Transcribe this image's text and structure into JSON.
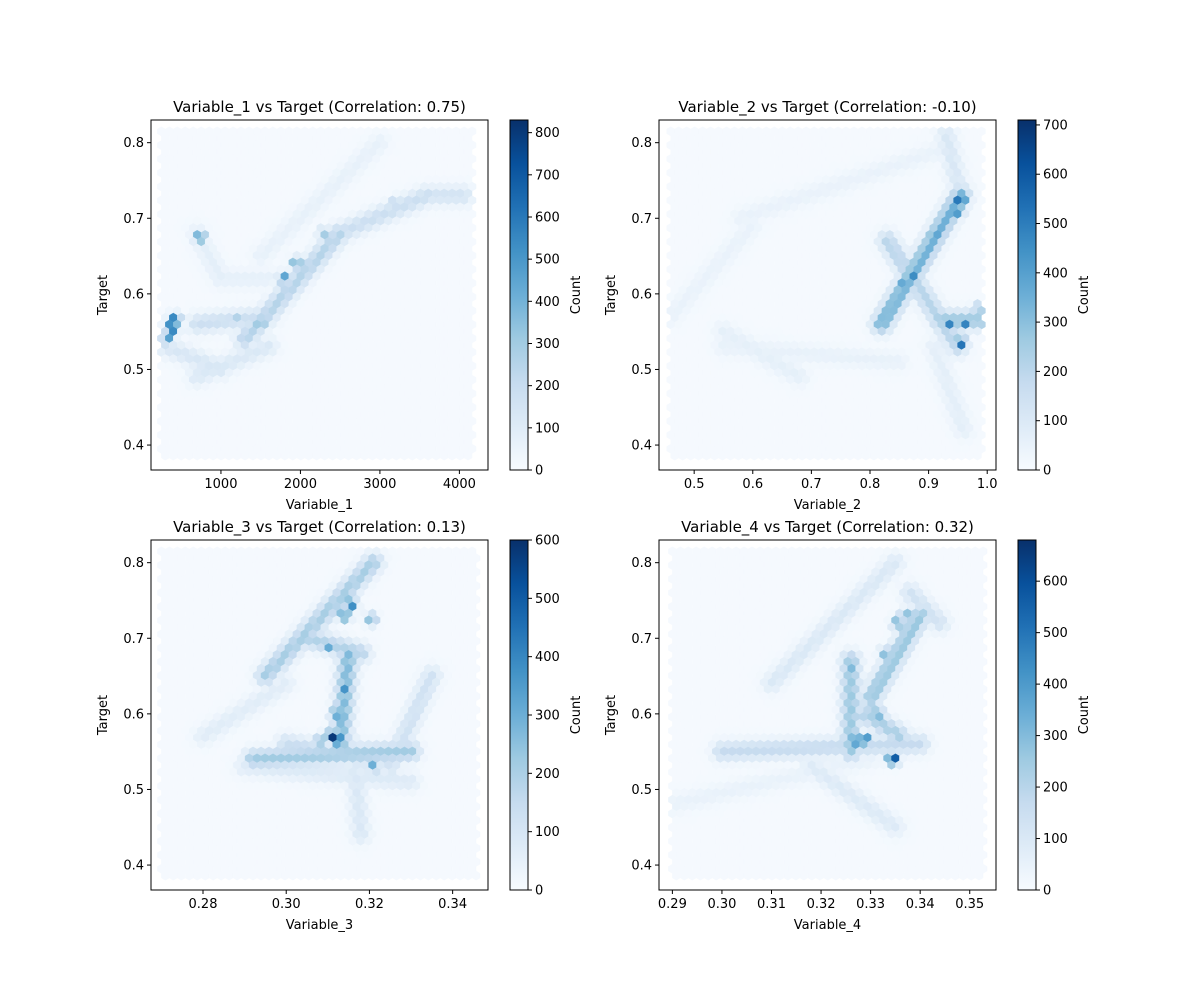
{
  "figure": {
    "colormap": "Blues",
    "background": "#ffffff"
  },
  "chart_data": [
    {
      "type": "heatmap",
      "subtype": "hexbin",
      "title": "Variable_1 vs Target (Correlation: 0.75)",
      "xlabel": "Variable_1",
      "ylabel": "Target",
      "xlim": [
        120,
        4360
      ],
      "ylim": [
        0.367,
        0.83
      ],
      "xticks": [
        1000,
        2000,
        3000,
        4000
      ],
      "yticks": [
        0.4,
        0.5,
        0.6,
        0.7,
        0.8
      ],
      "colorbar": {
        "label": "Count",
        "min": 0,
        "max": 830,
        "ticks": [
          0,
          100,
          200,
          300,
          400,
          500,
          600,
          700,
          800
        ]
      },
      "background_extent": {
        "x": [
          250,
          4200
        ],
        "y": [
          0.383,
          0.815
        ]
      },
      "hotspots": [
        {
          "x": 380,
          "y": 0.555,
          "count": 820
        },
        {
          "x": 420,
          "y": 0.565,
          "count": 700
        },
        {
          "x": 330,
          "y": 0.54,
          "count": 500
        },
        {
          "x": 740,
          "y": 0.675,
          "count": 550
        },
        {
          "x": 1800,
          "y": 0.62,
          "count": 520
        },
        {
          "x": 1950,
          "y": 0.64,
          "count": 480
        },
        {
          "x": 1500,
          "y": 0.56,
          "count": 430
        },
        {
          "x": 1200,
          "y": 0.565,
          "count": 300
        },
        {
          "x": 2300,
          "y": 0.68,
          "count": 300
        },
        {
          "x": 3200,
          "y": 0.72,
          "count": 260
        }
      ],
      "bands": [
        {
          "from": [
            300,
            0.53
          ],
          "to": [
            1000,
            0.5
          ],
          "count": 120
        },
        {
          "from": [
            700,
            0.56
          ],
          "to": [
            1600,
            0.57
          ],
          "count": 170
        },
        {
          "from": [
            1300,
            0.54
          ],
          "to": [
            2500,
            0.68
          ],
          "count": 240
        },
        {
          "from": [
            2500,
            0.68
          ],
          "to": [
            3600,
            0.73
          ],
          "count": 170
        },
        {
          "from": [
            3600,
            0.73
          ],
          "to": [
            4050,
            0.73
          ],
          "count": 140
        },
        {
          "from": [
            700,
            0.68
          ],
          "to": [
            1000,
            0.62
          ],
          "count": 70
        },
        {
          "from": [
            1500,
            0.65
          ],
          "to": [
            3000,
            0.8
          ],
          "count": 55
        },
        {
          "from": [
            700,
            0.49
          ],
          "to": [
            1600,
            0.53
          ],
          "count": 110
        },
        {
          "from": [
            1000,
            0.62
          ],
          "to": [
            1600,
            0.62
          ],
          "count": 60
        }
      ]
    },
    {
      "type": "heatmap",
      "subtype": "hexbin",
      "title": "Variable_2 vs Target (Correlation: -0.10)",
      "xlabel": "Variable_2",
      "ylabel": "Target",
      "xlim": [
        0.44,
        1.015
      ],
      "ylim": [
        0.367,
        0.83
      ],
      "xticks": [
        0.5,
        0.6,
        0.7,
        0.8,
        0.9,
        1.0
      ],
      "yticks": [
        0.4,
        0.5,
        0.6,
        0.7,
        0.8
      ],
      "colorbar": {
        "label": "Count",
        "min": 0,
        "max": 710,
        "ticks": [
          0,
          100,
          200,
          300,
          400,
          500,
          600,
          700
        ]
      },
      "background_extent": {
        "x": [
          0.46,
          0.995
        ],
        "y": [
          0.383,
          0.815
        ]
      },
      "hotspots": [
        {
          "x": 0.955,
          "y": 0.725,
          "count": 700
        },
        {
          "x": 0.95,
          "y": 0.71,
          "count": 560
        },
        {
          "x": 0.91,
          "y": 0.68,
          "count": 520
        },
        {
          "x": 0.87,
          "y": 0.625,
          "count": 580
        },
        {
          "x": 0.86,
          "y": 0.615,
          "count": 500
        },
        {
          "x": 0.94,
          "y": 0.56,
          "count": 560
        },
        {
          "x": 0.96,
          "y": 0.56,
          "count": 520
        },
        {
          "x": 0.955,
          "y": 0.535,
          "count": 600
        },
        {
          "x": 0.985,
          "y": 0.58,
          "count": 300
        },
        {
          "x": 0.83,
          "y": 0.575,
          "count": 280
        }
      ],
      "bands": [
        {
          "from": [
            0.82,
            0.56
          ],
          "to": [
            0.955,
            0.73
          ],
          "count": 340
        },
        {
          "from": [
            0.955,
            0.73
          ],
          "to": [
            0.93,
            0.81
          ],
          "count": 100
        },
        {
          "from": [
            0.83,
            0.67
          ],
          "to": [
            0.95,
            0.53
          ],
          "count": 200
        },
        {
          "from": [
            0.92,
            0.565
          ],
          "to": [
            0.995,
            0.565
          ],
          "count": 260
        },
        {
          "from": [
            0.58,
            0.7
          ],
          "to": [
            0.92,
            0.79
          ],
          "count": 40
        },
        {
          "from": [
            0.46,
            0.57
          ],
          "to": [
            0.6,
            0.69
          ],
          "count": 40
        },
        {
          "from": [
            0.55,
            0.53
          ],
          "to": [
            0.85,
            0.51
          ],
          "count": 45
        },
        {
          "from": [
            0.55,
            0.55
          ],
          "to": [
            0.68,
            0.49
          ],
          "count": 55
        },
        {
          "from": [
            0.91,
            0.53
          ],
          "to": [
            0.96,
            0.42
          ],
          "count": 60
        }
      ]
    },
    {
      "type": "heatmap",
      "subtype": "hexbin",
      "title": "Variable_3 vs Target (Correlation: 0.13)",
      "xlabel": "Variable_3",
      "ylabel": "Target",
      "xlim": [
        0.2675,
        0.3485
      ],
      "ylim": [
        0.367,
        0.83
      ],
      "xticks": [
        0.28,
        0.3,
        0.32,
        0.34
      ],
      "yticks": [
        0.4,
        0.5,
        0.6,
        0.7,
        0.8
      ],
      "colorbar": {
        "label": "Count",
        "min": 0,
        "max": 600,
        "ticks": [
          0,
          100,
          200,
          300,
          400,
          500,
          600
        ]
      },
      "background_extent": {
        "x": [
          0.27,
          0.346
        ],
        "y": [
          0.383,
          0.815
        ]
      },
      "hotspots": [
        {
          "x": 0.311,
          "y": 0.57,
          "count": 600
        },
        {
          "x": 0.3125,
          "y": 0.565,
          "count": 520
        },
        {
          "x": 0.3155,
          "y": 0.745,
          "count": 480
        },
        {
          "x": 0.314,
          "y": 0.73,
          "count": 420
        },
        {
          "x": 0.314,
          "y": 0.63,
          "count": 400
        },
        {
          "x": 0.312,
          "y": 0.6,
          "count": 380
        },
        {
          "x": 0.31,
          "y": 0.69,
          "count": 350
        },
        {
          "x": 0.321,
          "y": 0.53,
          "count": 320
        },
        {
          "x": 0.3205,
          "y": 0.725,
          "count": 300
        },
        {
          "x": 0.3085,
          "y": 0.565,
          "count": 320
        }
      ],
      "bands": [
        {
          "from": [
            0.295,
            0.65
          ],
          "to": [
            0.321,
            0.8
          ],
          "count": 200
        },
        {
          "from": [
            0.28,
            0.57
          ],
          "to": [
            0.3,
            0.64
          ],
          "count": 60
        },
        {
          "from": [
            0.292,
            0.54
          ],
          "to": [
            0.33,
            0.55
          ],
          "count": 210
        },
        {
          "from": [
            0.3,
            0.56
          ],
          "to": [
            0.32,
            0.54
          ],
          "count": 130
        },
        {
          "from": [
            0.313,
            0.56
          ],
          "to": [
            0.315,
            0.68
          ],
          "count": 260
        },
        {
          "from": [
            0.316,
            0.56
          ],
          "to": [
            0.318,
            0.44
          ],
          "count": 80
        },
        {
          "from": [
            0.325,
            0.53
          ],
          "to": [
            0.335,
            0.65
          ],
          "count": 110
        },
        {
          "from": [
            0.305,
            0.7
          ],
          "to": [
            0.318,
            0.68
          ],
          "count": 180
        },
        {
          "from": [
            0.29,
            0.53
          ],
          "to": [
            0.33,
            0.51
          ],
          "count": 70
        }
      ]
    },
    {
      "type": "heatmap",
      "subtype": "hexbin",
      "title": "Variable_4 vs Target (Correlation: 0.32)",
      "xlabel": "Variable_4",
      "ylabel": "Target",
      "xlim": [
        0.2873,
        0.3553
      ],
      "ylim": [
        0.367,
        0.83
      ],
      "xticks": [
        0.29,
        0.3,
        0.31,
        0.32,
        0.33,
        0.34,
        0.35
      ],
      "yticks": [
        0.4,
        0.5,
        0.6,
        0.7,
        0.8
      ],
      "colorbar": {
        "label": "Count",
        "min": 0,
        "max": 680,
        "ticks": [
          0,
          100,
          200,
          300,
          400,
          500,
          600
        ]
      },
      "background_extent": {
        "x": [
          0.29,
          0.353
        ],
        "y": [
          0.383,
          0.815
        ]
      },
      "hotspots": [
        {
          "x": 0.3345,
          "y": 0.54,
          "count": 680
        },
        {
          "x": 0.327,
          "y": 0.565,
          "count": 580
        },
        {
          "x": 0.329,
          "y": 0.565,
          "count": 520
        },
        {
          "x": 0.3315,
          "y": 0.6,
          "count": 400
        },
        {
          "x": 0.3355,
          "y": 0.72,
          "count": 380
        },
        {
          "x": 0.337,
          "y": 0.73,
          "count": 340
        },
        {
          "x": 0.3305,
          "y": 0.62,
          "count": 330
        },
        {
          "x": 0.333,
          "y": 0.68,
          "count": 320
        },
        {
          "x": 0.326,
          "y": 0.66,
          "count": 300
        },
        {
          "x": 0.3385,
          "y": 0.73,
          "count": 260
        }
      ],
      "bands": [
        {
          "from": [
            0.326,
            0.55
          ],
          "to": [
            0.326,
            0.67
          ],
          "count": 250
        },
        {
          "from": [
            0.33,
            0.62
          ],
          "to": [
            0.34,
            0.73
          ],
          "count": 260
        },
        {
          "from": [
            0.3,
            0.55
          ],
          "to": [
            0.34,
            0.56
          ],
          "count": 160
        },
        {
          "from": [
            0.31,
            0.64
          ],
          "to": [
            0.335,
            0.8
          ],
          "count": 90
        },
        {
          "from": [
            0.29,
            0.48
          ],
          "to": [
            0.33,
            0.54
          ],
          "count": 40
        },
        {
          "from": [
            0.318,
            0.53
          ],
          "to": [
            0.335,
            0.45
          ],
          "count": 80
        },
        {
          "from": [
            0.329,
            0.6
          ],
          "to": [
            0.336,
            0.57
          ],
          "count": 220
        },
        {
          "from": [
            0.338,
            0.76
          ],
          "to": [
            0.344,
            0.72
          ],
          "count": 120
        }
      ]
    }
  ]
}
